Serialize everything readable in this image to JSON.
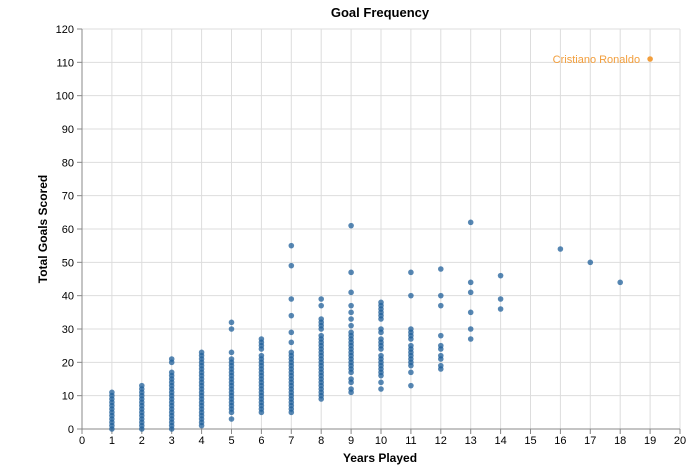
{
  "chart_data": {
    "type": "scatter",
    "title": "Goal Frequency",
    "xlabel": "Years Played",
    "ylabel": "Total Goals Scored",
    "xlim": [
      0,
      20
    ],
    "ylim": [
      0,
      120
    ],
    "xticks": [
      0,
      1,
      2,
      3,
      4,
      5,
      6,
      7,
      8,
      9,
      10,
      11,
      12,
      13,
      14,
      15,
      16,
      17,
      18,
      19,
      20
    ],
    "yticks": [
      0,
      10,
      20,
      30,
      40,
      50,
      60,
      70,
      80,
      90,
      100,
      110,
      120
    ],
    "grid": true,
    "colors": {
      "points": "#1f5f99",
      "highlight": "#f29e3c"
    },
    "series": [
      {
        "points": [
          [
            1,
            0
          ],
          [
            1,
            1
          ],
          [
            1,
            2
          ],
          [
            1,
            3
          ],
          [
            1,
            4
          ],
          [
            1,
            5
          ],
          [
            1,
            6
          ],
          [
            1,
            7
          ],
          [
            1,
            8
          ],
          [
            1,
            9
          ],
          [
            1,
            10
          ],
          [
            1,
            11
          ],
          [
            2,
            0
          ],
          [
            2,
            1
          ],
          [
            2,
            2
          ],
          [
            2,
            3
          ],
          [
            2,
            4
          ],
          [
            2,
            5
          ],
          [
            2,
            6
          ],
          [
            2,
            7
          ],
          [
            2,
            8
          ],
          [
            2,
            9
          ],
          [
            2,
            10
          ],
          [
            2,
            11
          ],
          [
            2,
            12
          ],
          [
            2,
            13
          ],
          [
            3,
            0
          ],
          [
            3,
            1
          ],
          [
            3,
            2
          ],
          [
            3,
            3
          ],
          [
            3,
            4
          ],
          [
            3,
            5
          ],
          [
            3,
            6
          ],
          [
            3,
            7
          ],
          [
            3,
            8
          ],
          [
            3,
            9
          ],
          [
            3,
            10
          ],
          [
            3,
            11
          ],
          [
            3,
            12
          ],
          [
            3,
            13
          ],
          [
            3,
            14
          ],
          [
            3,
            15
          ],
          [
            3,
            16
          ],
          [
            3,
            17
          ],
          [
            3,
            20
          ],
          [
            3,
            21
          ],
          [
            4,
            1
          ],
          [
            4,
            2
          ],
          [
            4,
            3
          ],
          [
            4,
            4
          ],
          [
            4,
            5
          ],
          [
            4,
            6
          ],
          [
            4,
            7
          ],
          [
            4,
            8
          ],
          [
            4,
            9
          ],
          [
            4,
            10
          ],
          [
            4,
            11
          ],
          [
            4,
            12
          ],
          [
            4,
            13
          ],
          [
            4,
            14
          ],
          [
            4,
            15
          ],
          [
            4,
            16
          ],
          [
            4,
            17
          ],
          [
            4,
            18
          ],
          [
            4,
            19
          ],
          [
            4,
            20
          ],
          [
            4,
            21
          ],
          [
            4,
            22
          ],
          [
            4,
            23
          ],
          [
            5,
            3
          ],
          [
            5,
            5
          ],
          [
            5,
            6
          ],
          [
            5,
            7
          ],
          [
            5,
            8
          ],
          [
            5,
            9
          ],
          [
            5,
            10
          ],
          [
            5,
            11
          ],
          [
            5,
            12
          ],
          [
            5,
            13
          ],
          [
            5,
            14
          ],
          [
            5,
            15
          ],
          [
            5,
            16
          ],
          [
            5,
            17
          ],
          [
            5,
            18
          ],
          [
            5,
            19
          ],
          [
            5,
            20
          ],
          [
            5,
            21
          ],
          [
            5,
            23
          ],
          [
            5,
            30
          ],
          [
            5,
            32
          ],
          [
            6,
            5
          ],
          [
            6,
            6
          ],
          [
            6,
            7
          ],
          [
            6,
            8
          ],
          [
            6,
            9
          ],
          [
            6,
            10
          ],
          [
            6,
            11
          ],
          [
            6,
            12
          ],
          [
            6,
            13
          ],
          [
            6,
            14
          ],
          [
            6,
            15
          ],
          [
            6,
            16
          ],
          [
            6,
            17
          ],
          [
            6,
            18
          ],
          [
            6,
            19
          ],
          [
            6,
            20
          ],
          [
            6,
            21
          ],
          [
            6,
            22
          ],
          [
            6,
            24
          ],
          [
            6,
            25
          ],
          [
            6,
            26
          ],
          [
            6,
            27
          ],
          [
            7,
            5
          ],
          [
            7,
            6
          ],
          [
            7,
            7
          ],
          [
            7,
            8
          ],
          [
            7,
            9
          ],
          [
            7,
            10
          ],
          [
            7,
            11
          ],
          [
            7,
            12
          ],
          [
            7,
            13
          ],
          [
            7,
            14
          ],
          [
            7,
            15
          ],
          [
            7,
            16
          ],
          [
            7,
            17
          ],
          [
            7,
            18
          ],
          [
            7,
            19
          ],
          [
            7,
            20
          ],
          [
            7,
            21
          ],
          [
            7,
            22
          ],
          [
            7,
            23
          ],
          [
            7,
            26
          ],
          [
            7,
            29
          ],
          [
            7,
            34
          ],
          [
            7,
            39
          ],
          [
            7,
            49
          ],
          [
            7,
            55
          ],
          [
            8,
            9
          ],
          [
            8,
            10
          ],
          [
            8,
            11
          ],
          [
            8,
            12
          ],
          [
            8,
            13
          ],
          [
            8,
            14
          ],
          [
            8,
            15
          ],
          [
            8,
            16
          ],
          [
            8,
            17
          ],
          [
            8,
            18
          ],
          [
            8,
            19
          ],
          [
            8,
            20
          ],
          [
            8,
            21
          ],
          [
            8,
            22
          ],
          [
            8,
            23
          ],
          [
            8,
            24
          ],
          [
            8,
            25
          ],
          [
            8,
            26
          ],
          [
            8,
            27
          ],
          [
            8,
            28
          ],
          [
            8,
            30
          ],
          [
            8,
            31
          ],
          [
            8,
            32
          ],
          [
            8,
            33
          ],
          [
            8,
            37
          ],
          [
            8,
            39
          ],
          [
            9,
            11
          ],
          [
            9,
            12
          ],
          [
            9,
            14
          ],
          [
            9,
            15
          ],
          [
            9,
            17
          ],
          [
            9,
            18
          ],
          [
            9,
            19
          ],
          [
            9,
            20
          ],
          [
            9,
            21
          ],
          [
            9,
            22
          ],
          [
            9,
            23
          ],
          [
            9,
            24
          ],
          [
            9,
            25
          ],
          [
            9,
            26
          ],
          [
            9,
            27
          ],
          [
            9,
            28
          ],
          [
            9,
            29
          ],
          [
            9,
            31
          ],
          [
            9,
            33
          ],
          [
            9,
            35
          ],
          [
            9,
            37
          ],
          [
            9,
            41
          ],
          [
            9,
            47
          ],
          [
            9,
            61
          ],
          [
            10,
            12
          ],
          [
            10,
            14
          ],
          [
            10,
            16
          ],
          [
            10,
            17
          ],
          [
            10,
            18
          ],
          [
            10,
            19
          ],
          [
            10,
            20
          ],
          [
            10,
            21
          ],
          [
            10,
            22
          ],
          [
            10,
            24
          ],
          [
            10,
            25
          ],
          [
            10,
            26
          ],
          [
            10,
            27
          ],
          [
            10,
            29
          ],
          [
            10,
            30
          ],
          [
            10,
            33
          ],
          [
            10,
            34
          ],
          [
            10,
            35
          ],
          [
            10,
            36
          ],
          [
            10,
            37
          ],
          [
            10,
            38
          ],
          [
            11,
            13
          ],
          [
            11,
            17
          ],
          [
            11,
            19
          ],
          [
            11,
            20
          ],
          [
            11,
            21
          ],
          [
            11,
            22
          ],
          [
            11,
            23
          ],
          [
            11,
            24
          ],
          [
            11,
            25
          ],
          [
            11,
            27
          ],
          [
            11,
            28
          ],
          [
            11,
            29
          ],
          [
            11,
            30
          ],
          [
            11,
            40
          ],
          [
            11,
            47
          ],
          [
            12,
            18
          ],
          [
            12,
            19
          ],
          [
            12,
            21
          ],
          [
            12,
            22
          ],
          [
            12,
            24
          ],
          [
            12,
            25
          ],
          [
            12,
            28
          ],
          [
            12,
            37
          ],
          [
            12,
            40
          ],
          [
            12,
            48
          ],
          [
            13,
            27
          ],
          [
            13,
            30
          ],
          [
            13,
            35
          ],
          [
            13,
            41
          ],
          [
            13,
            44
          ],
          [
            13,
            62
          ],
          [
            14,
            36
          ],
          [
            14,
            39
          ],
          [
            14,
            46
          ],
          [
            16,
            54
          ],
          [
            17,
            50
          ],
          [
            18,
            44
          ]
        ]
      }
    ],
    "highlight": {
      "label": "Cristiano Ronaldo",
      "x": 19,
      "y": 111
    }
  }
}
